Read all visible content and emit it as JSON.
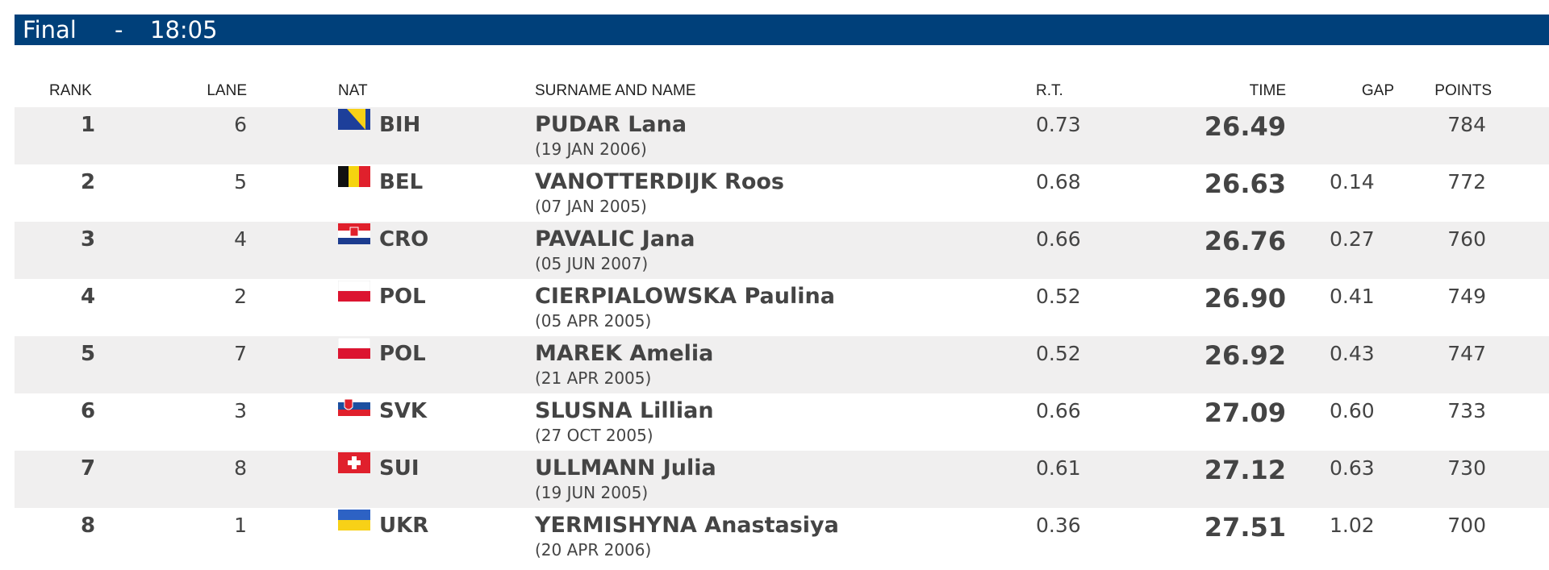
{
  "header": {
    "event": "Final",
    "separator": "-",
    "time": "18:05"
  },
  "table": {
    "columns": {
      "rank": "RANK",
      "lane": "LANE",
      "nat": "NAT",
      "name": "SURNAME AND NAME",
      "rt": "R.T.",
      "time": "TIME",
      "gap": "GAP",
      "points": "POINTS"
    },
    "rows": [
      {
        "rank": "1",
        "lane": "6",
        "nat": "BIH",
        "name": "PUDAR Lana",
        "dob": "(19 JAN 2006)",
        "rt": "0.73",
        "time": "26.49",
        "points": "784"
      },
      {
        "rank": "2",
        "lane": "5",
        "nat": "BEL",
        "name": "VANOTTERDIJK Roos",
        "dob": "(07 JAN 2005)",
        "rt": "0.68",
        "time": "26.63",
        "gap": "0.14",
        "points": "772"
      },
      {
        "rank": "3",
        "lane": "4",
        "nat": "CRO",
        "name": "PAVALIC Jana",
        "dob": "(05 JUN 2007)",
        "rt": "0.66",
        "time": "26.76",
        "gap": "0.27",
        "points": "760"
      },
      {
        "rank": "4",
        "lane": "2",
        "nat": "POL",
        "name": "CIERPIALOWSKA Paulina",
        "dob": "(05 APR 2005)",
        "rt": "0.52",
        "time": "26.90",
        "gap": "0.41",
        "points": "749"
      },
      {
        "rank": "5",
        "lane": "7",
        "nat": "POL",
        "name": "MAREK Amelia",
        "dob": "(21 APR 2005)",
        "rt": "0.52",
        "time": "26.92",
        "gap": "0.43",
        "points": "747"
      },
      {
        "rank": "6",
        "lane": "3",
        "nat": "SVK",
        "name": "SLUSNA Lillian",
        "dob": "(27 OCT 2005)",
        "rt": "0.66",
        "time": "27.09",
        "gap": "0.60",
        "points": "733"
      },
      {
        "rank": "7",
        "lane": "8",
        "nat": "SUI",
        "name": "ULLMANN Julia",
        "dob": "(19 JUN 2005)",
        "rt": "0.61",
        "time": "27.12",
        "gap": "0.63",
        "points": "730"
      },
      {
        "rank": "8",
        "lane": "1",
        "nat": "UKR",
        "name": "YERMISHYNA Anastasiya",
        "dob": "(20 APR 2006)",
        "rt": "0.36",
        "time": "27.51",
        "gap": "1.02",
        "points": "700"
      }
    ]
  }
}
